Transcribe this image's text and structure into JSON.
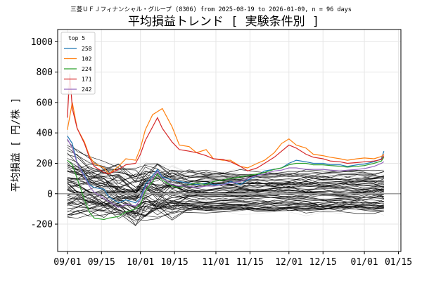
{
  "chart_data": {
    "type": "line",
    "subtitle": "三菱ＵＦＪフィナンシャル・グループ (8306) from 2025-08-19 to 2026-01-09, n = 96 days",
    "title": "平均損益トレンド [ 実験条件別 ]",
    "ylabel": "平均損益 [ 円/株 ]",
    "xlabel": "",
    "ylim": [
      -380,
      1080
    ],
    "xlim": [
      "2025-08-28",
      "2026-01-16"
    ],
    "grid": true,
    "legend": {
      "title": "top 5",
      "placement": "top-left"
    },
    "x_ticks": [
      {
        "date": "2025-09-01",
        "label": "09/01"
      },
      {
        "date": "2025-09-15",
        "label": "09/15"
      },
      {
        "date": "2025-10-01",
        "label": "10/01"
      },
      {
        "date": "2025-10-15",
        "label": "10/15"
      },
      {
        "date": "2025-11-01",
        "label": "11/01"
      },
      {
        "date": "2025-11-15",
        "label": "11/15"
      },
      {
        "date": "2025-12-01",
        "label": "12/01"
      },
      {
        "date": "2025-12-15",
        "label": "12/15"
      },
      {
        "date": "2026-01-01",
        "label": "01/01"
      },
      {
        "date": "2026-01-15",
        "label": "01/15"
      }
    ],
    "y_ticks": [
      -200,
      0,
      200,
      400,
      600,
      800,
      1000
    ],
    "zero_line": 0,
    "series": [
      {
        "name": "258",
        "color": "#1f77b4",
        "points": [
          [
            "2025-09-01",
            380
          ],
          [
            "2025-09-03",
            330
          ],
          [
            "2025-09-05",
            200
          ],
          [
            "2025-09-08",
            120
          ],
          [
            "2025-09-10",
            60
          ],
          [
            "2025-09-12",
            40
          ],
          [
            "2025-09-16",
            30
          ],
          [
            "2025-09-18",
            -20
          ],
          [
            "2025-09-22",
            -60
          ],
          [
            "2025-09-25",
            -40
          ],
          [
            "2025-09-29",
            -60
          ],
          [
            "2025-10-01",
            -30
          ],
          [
            "2025-10-03",
            60
          ],
          [
            "2025-10-06",
            120
          ],
          [
            "2025-10-08",
            160
          ],
          [
            "2025-10-10",
            110
          ],
          [
            "2025-10-14",
            90
          ],
          [
            "2025-10-17",
            80
          ],
          [
            "2025-10-21",
            70
          ],
          [
            "2025-10-24",
            60
          ],
          [
            "2025-10-28",
            70
          ],
          [
            "2025-10-31",
            60
          ],
          [
            "2025-11-04",
            60
          ],
          [
            "2025-11-07",
            80
          ],
          [
            "2025-11-11",
            60
          ],
          [
            "2025-11-14",
            90
          ],
          [
            "2025-11-18",
            120
          ],
          [
            "2025-11-21",
            150
          ],
          [
            "2025-11-25",
            160
          ],
          [
            "2025-11-28",
            170
          ],
          [
            "2025-12-01",
            200
          ],
          [
            "2025-12-04",
            220
          ],
          [
            "2025-12-08",
            210
          ],
          [
            "2025-12-11",
            200
          ],
          [
            "2025-12-15",
            200
          ],
          [
            "2025-12-18",
            190
          ],
          [
            "2025-12-22",
            190
          ],
          [
            "2025-12-25",
            180
          ],
          [
            "2025-12-29",
            190
          ],
          [
            "2026-01-01",
            195
          ],
          [
            "2026-01-05",
            210
          ],
          [
            "2026-01-08",
            230
          ],
          [
            "2026-01-09",
            280
          ]
        ]
      },
      {
        "name": "102",
        "color": "#ff7f0e",
        "points": [
          [
            "2025-09-01",
            420
          ],
          [
            "2025-09-03",
            600
          ],
          [
            "2025-09-05",
            430
          ],
          [
            "2025-09-08",
            340
          ],
          [
            "2025-09-10",
            250
          ],
          [
            "2025-09-12",
            200
          ],
          [
            "2025-09-16",
            170
          ],
          [
            "2025-09-18",
            130
          ],
          [
            "2025-09-22",
            180
          ],
          [
            "2025-09-25",
            230
          ],
          [
            "2025-09-29",
            220
          ],
          [
            "2025-10-01",
            300
          ],
          [
            "2025-10-03",
            420
          ],
          [
            "2025-10-06",
            520
          ],
          [
            "2025-10-08",
            540
          ],
          [
            "2025-10-10",
            560
          ],
          [
            "2025-10-14",
            440
          ],
          [
            "2025-10-17",
            320
          ],
          [
            "2025-10-21",
            310
          ],
          [
            "2025-10-24",
            270
          ],
          [
            "2025-10-28",
            290
          ],
          [
            "2025-10-31",
            230
          ],
          [
            "2025-11-04",
            220
          ],
          [
            "2025-11-07",
            220
          ],
          [
            "2025-11-11",
            180
          ],
          [
            "2025-11-14",
            170
          ],
          [
            "2025-11-18",
            200
          ],
          [
            "2025-11-21",
            220
          ],
          [
            "2025-11-25",
            270
          ],
          [
            "2025-11-28",
            330
          ],
          [
            "2025-12-01",
            360
          ],
          [
            "2025-12-04",
            320
          ],
          [
            "2025-12-08",
            300
          ],
          [
            "2025-12-11",
            260
          ],
          [
            "2025-12-15",
            250
          ],
          [
            "2025-12-18",
            240
          ],
          [
            "2025-12-22",
            230
          ],
          [
            "2025-12-25",
            220
          ],
          [
            "2025-12-29",
            230
          ],
          [
            "2026-01-01",
            235
          ],
          [
            "2026-01-05",
            230
          ],
          [
            "2026-01-08",
            245
          ],
          [
            "2026-01-09",
            260
          ]
        ]
      },
      {
        "name": "224",
        "color": "#2ca02c",
        "points": [
          [
            "2025-09-01",
            220
          ],
          [
            "2025-09-03",
            190
          ],
          [
            "2025-09-05",
            100
          ],
          [
            "2025-09-08",
            -40
          ],
          [
            "2025-09-10",
            -120
          ],
          [
            "2025-09-12",
            -160
          ],
          [
            "2025-09-16",
            -170
          ],
          [
            "2025-09-18",
            -160
          ],
          [
            "2025-09-22",
            -150
          ],
          [
            "2025-09-25",
            -120
          ],
          [
            "2025-09-29",
            -100
          ],
          [
            "2025-10-01",
            -70
          ],
          [
            "2025-10-03",
            20
          ],
          [
            "2025-10-06",
            80
          ],
          [
            "2025-10-08",
            130
          ],
          [
            "2025-10-10",
            90
          ],
          [
            "2025-10-14",
            50
          ],
          [
            "2025-10-17",
            40
          ],
          [
            "2025-10-21",
            60
          ],
          [
            "2025-10-24",
            70
          ],
          [
            "2025-10-28",
            60
          ],
          [
            "2025-10-31",
            80
          ],
          [
            "2025-11-04",
            90
          ],
          [
            "2025-11-07",
            100
          ],
          [
            "2025-11-11",
            110
          ],
          [
            "2025-11-14",
            120
          ],
          [
            "2025-11-18",
            130
          ],
          [
            "2025-11-21",
            140
          ],
          [
            "2025-11-25",
            160
          ],
          [
            "2025-11-28",
            170
          ],
          [
            "2025-12-01",
            190
          ],
          [
            "2025-12-04",
            200
          ],
          [
            "2025-12-08",
            200
          ],
          [
            "2025-12-11",
            190
          ],
          [
            "2025-12-15",
            190
          ],
          [
            "2025-12-18",
            185
          ],
          [
            "2025-12-22",
            180
          ],
          [
            "2025-12-25",
            175
          ],
          [
            "2025-12-29",
            180
          ],
          [
            "2026-01-01",
            185
          ],
          [
            "2026-01-05",
            200
          ],
          [
            "2026-01-08",
            215
          ],
          [
            "2026-01-09",
            240
          ]
        ]
      },
      {
        "name": "171",
        "color": "#d62728",
        "points": [
          [
            "2025-09-01",
            500
          ],
          [
            "2025-09-02",
            790
          ],
          [
            "2025-09-03",
            560
          ],
          [
            "2025-09-05",
            430
          ],
          [
            "2025-09-08",
            330
          ],
          [
            "2025-09-10",
            240
          ],
          [
            "2025-09-12",
            180
          ],
          [
            "2025-09-16",
            140
          ],
          [
            "2025-09-18",
            130
          ],
          [
            "2025-09-22",
            160
          ],
          [
            "2025-09-25",
            190
          ],
          [
            "2025-09-29",
            200
          ],
          [
            "2025-10-01",
            260
          ],
          [
            "2025-10-03",
            350
          ],
          [
            "2025-10-06",
            440
          ],
          [
            "2025-10-08",
            500
          ],
          [
            "2025-10-10",
            430
          ],
          [
            "2025-10-14",
            340
          ],
          [
            "2025-10-17",
            290
          ],
          [
            "2025-10-21",
            280
          ],
          [
            "2025-10-24",
            270
          ],
          [
            "2025-10-28",
            250
          ],
          [
            "2025-10-31",
            230
          ],
          [
            "2025-11-04",
            225
          ],
          [
            "2025-11-07",
            210
          ],
          [
            "2025-11-11",
            180
          ],
          [
            "2025-11-14",
            150
          ],
          [
            "2025-11-18",
            170
          ],
          [
            "2025-11-21",
            200
          ],
          [
            "2025-11-25",
            240
          ],
          [
            "2025-11-28",
            280
          ],
          [
            "2025-12-01",
            320
          ],
          [
            "2025-12-04",
            300
          ],
          [
            "2025-12-08",
            260
          ],
          [
            "2025-12-11",
            240
          ],
          [
            "2025-12-15",
            230
          ],
          [
            "2025-12-18",
            215
          ],
          [
            "2025-12-22",
            210
          ],
          [
            "2025-12-25",
            200
          ],
          [
            "2025-12-29",
            205
          ],
          [
            "2026-01-01",
            210
          ],
          [
            "2026-01-05",
            215
          ],
          [
            "2026-01-08",
            225
          ],
          [
            "2026-01-09",
            250
          ]
        ]
      },
      {
        "name": "242",
        "color": "#9467bd",
        "points": [
          [
            "2025-09-01",
            360
          ],
          [
            "2025-09-03",
            300
          ],
          [
            "2025-09-05",
            200
          ],
          [
            "2025-09-08",
            110
          ],
          [
            "2025-09-10",
            50
          ],
          [
            "2025-09-12",
            10
          ],
          [
            "2025-09-16",
            -30
          ],
          [
            "2025-09-18",
            -50
          ],
          [
            "2025-09-22",
            -90
          ],
          [
            "2025-09-25",
            -70
          ],
          [
            "2025-09-29",
            -80
          ],
          [
            "2025-10-01",
            -40
          ],
          [
            "2025-10-03",
            40
          ],
          [
            "2025-10-06",
            100
          ],
          [
            "2025-10-08",
            150
          ],
          [
            "2025-10-10",
            100
          ],
          [
            "2025-10-14",
            60
          ],
          [
            "2025-10-17",
            50
          ],
          [
            "2025-10-21",
            50
          ],
          [
            "2025-10-24",
            40
          ],
          [
            "2025-10-28",
            50
          ],
          [
            "2025-10-31",
            50
          ],
          [
            "2025-11-04",
            60
          ],
          [
            "2025-11-07",
            70
          ],
          [
            "2025-11-11",
            80
          ],
          [
            "2025-11-14",
            100
          ],
          [
            "2025-11-18",
            120
          ],
          [
            "2025-11-21",
            130
          ],
          [
            "2025-11-25",
            150
          ],
          [
            "2025-11-28",
            155
          ],
          [
            "2025-12-01",
            170
          ],
          [
            "2025-12-04",
            170
          ],
          [
            "2025-12-08",
            160
          ],
          [
            "2025-12-11",
            160
          ],
          [
            "2025-12-15",
            160
          ],
          [
            "2025-12-18",
            155
          ],
          [
            "2025-12-22",
            150
          ],
          [
            "2025-12-25",
            155
          ],
          [
            "2025-12-29",
            160
          ],
          [
            "2026-01-01",
            165
          ],
          [
            "2026-01-05",
            180
          ],
          [
            "2026-01-08",
            200
          ],
          [
            "2026-01-09",
            210
          ]
        ]
      }
    ],
    "background_series": {
      "description_count": 91,
      "colors": {
        "light": "#bdbdbd",
        "dark": "#000000"
      },
      "dates": [
        "2025-09-01",
        "2025-09-05",
        "2025-09-10",
        "2025-09-16",
        "2025-09-22",
        "2025-09-29",
        "2025-10-03",
        "2025-10-08",
        "2025-10-14",
        "2025-10-21",
        "2025-10-28",
        "2025-11-04",
        "2025-11-11",
        "2025-11-18",
        "2025-11-25",
        "2025-12-01",
        "2025-12-08",
        "2025-12-15",
        "2025-12-22",
        "2025-12-29",
        "2026-01-05",
        "2026-01-09"
      ]
    }
  }
}
